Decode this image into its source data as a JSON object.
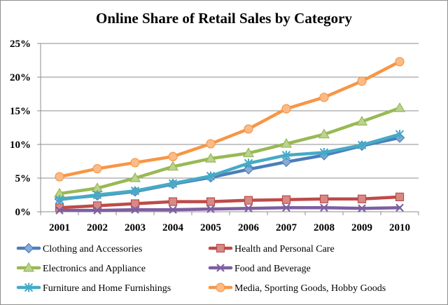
{
  "chart_data": {
    "type": "line",
    "title": "Online Share of Retail Sales by Category",
    "xlabel": "",
    "ylabel": "",
    "x": [
      "2001",
      "2002",
      "2003",
      "2004",
      "2005",
      "2006",
      "2007",
      "2008",
      "2009",
      "2010"
    ],
    "ylim": [
      0,
      25
    ],
    "yticks": [
      "0%",
      "5%",
      "10%",
      "15%",
      "20%",
      "25%"
    ],
    "grid": true,
    "legend_position": "bottom",
    "series": [
      {
        "name": "Clothing and Accessories",
        "color": "#4a7ebb",
        "marker": "diamond",
        "values": [
          1.9,
          2.4,
          3.0,
          4.1,
          5.1,
          6.3,
          7.4,
          8.4,
          9.8,
          11.0
        ]
      },
      {
        "name": "Health and Personal Care",
        "color": "#be4b48",
        "marker": "square",
        "values": [
          0.6,
          0.9,
          1.2,
          1.5,
          1.5,
          1.7,
          1.8,
          1.9,
          1.9,
          2.2
        ]
      },
      {
        "name": "Electronics and Appliance",
        "color": "#98b954",
        "marker": "triangle",
        "values": [
          2.7,
          3.5,
          5.0,
          6.7,
          7.9,
          8.7,
          10.1,
          11.5,
          13.4,
          15.4
        ]
      },
      {
        "name": "Food and Beverage",
        "color": "#7d60a0",
        "marker": "x",
        "values": [
          0.2,
          0.2,
          0.3,
          0.3,
          0.4,
          0.5,
          0.6,
          0.6,
          0.5,
          0.6
        ]
      },
      {
        "name": "Furniture and Home Furnishings",
        "color": "#46aac5",
        "marker": "star",
        "values": [
          1.8,
          2.5,
          3.1,
          4.2,
          5.3,
          7.2,
          8.4,
          8.8,
          9.9,
          11.5
        ]
      },
      {
        "name": "Media, Sporting Goods, Hobby Goods",
        "color": "#f79646",
        "marker": "circle",
        "values": [
          5.2,
          6.4,
          7.3,
          8.2,
          10.1,
          12.3,
          15.3,
          17.0,
          19.4,
          22.3
        ]
      }
    ]
  }
}
